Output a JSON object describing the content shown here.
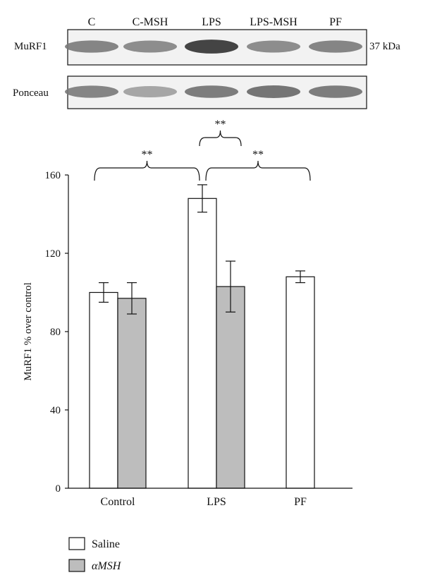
{
  "blot": {
    "lane_labels": [
      "C",
      "C-MSH",
      "LPS",
      "LPS-MSH",
      "PF"
    ],
    "row_labels": [
      "MuRF1",
      "Ponceau"
    ],
    "size_marker": "37 kDa",
    "murf1_intensity": [
      0.55,
      0.5,
      0.95,
      0.5,
      0.55
    ],
    "ponceau_intensity": [
      0.55,
      0.35,
      0.6,
      0.65,
      0.6
    ]
  },
  "chart_data": {
    "type": "bar",
    "categories": [
      "Control",
      "LPS",
      "PF"
    ],
    "series": [
      {
        "name": "Saline",
        "values": [
          100,
          148,
          108
        ],
        "errors": [
          5,
          7,
          3
        ],
        "color": "#ffffff"
      },
      {
        "name": "αMSH",
        "values": [
          97,
          103,
          null
        ],
        "errors": [
          8,
          13,
          null
        ],
        "color": "#bdbdbd"
      }
    ],
    "ylabel": "MuRF1 % over control",
    "xlabel": "",
    "ylim": [
      0,
      160
    ],
    "yticks": [
      0,
      40,
      80,
      120,
      160
    ],
    "grid": false,
    "significance": [
      {
        "from": "Control",
        "to": "LPS-Saline",
        "label": "**"
      },
      {
        "from": "LPS-Saline",
        "to": "LPS-αMSH",
        "label": "**"
      },
      {
        "from": "LPS-Saline",
        "to": "PF",
        "label": "**"
      }
    ]
  }
}
